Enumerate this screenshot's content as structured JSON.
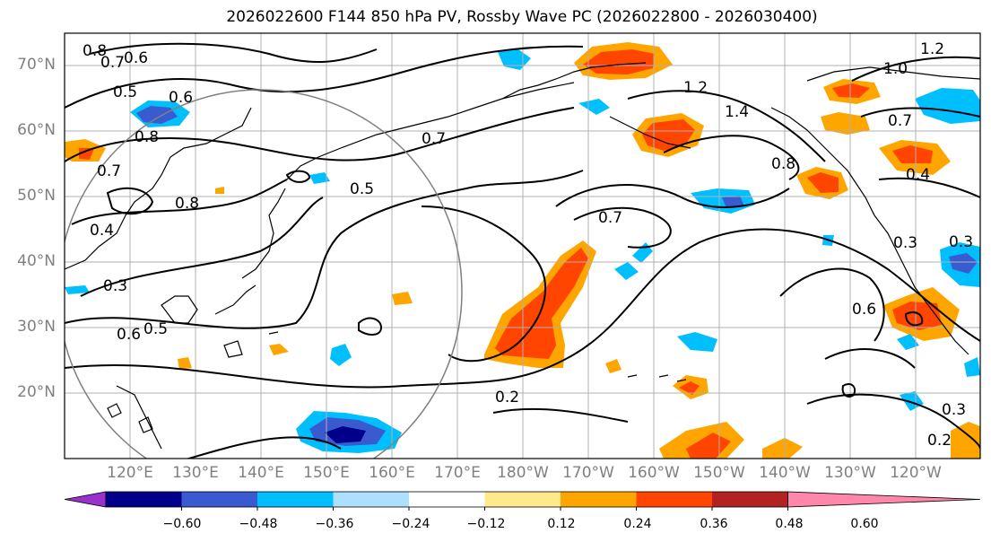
{
  "title": "2026022600 F144 850 hPa PV, Rossby Wave PC (2026022800 - 2026030400)",
  "map": {
    "lat_ticks": [
      "70°N",
      "60°N",
      "50°N",
      "40°N",
      "30°N",
      "20°N"
    ],
    "lon_ticks": [
      "120°E",
      "130°E",
      "140°E",
      "150°E",
      "160°E",
      "170°E",
      "180°W",
      "170°W",
      "160°W",
      "150°W",
      "140°W",
      "130°W",
      "120°W"
    ],
    "contour_labels": [
      "0.8",
      "0.7",
      "0.6",
      "0.5",
      "0.6",
      "0.8",
      "0.7",
      "0.4",
      "0.3",
      "0.6",
      "0.5",
      "0.5",
      "0.7",
      "0.8",
      "1.2",
      "1.4",
      "1.2",
      "1.0",
      "0.7",
      "0.4",
      "0.8",
      "0.7",
      "0.3",
      "0.3",
      "0.6",
      "0.2",
      "0.3",
      "0.2"
    ]
  },
  "colorbar": {
    "colors": [
      "#9932CC",
      "#00008B",
      "#3A5BD0",
      "#00BFFF",
      "#ADE0FF",
      "#FFFFFF",
      "#FFE98A",
      "#FFA500",
      "#FF4500",
      "#B22222",
      "#FF88AA"
    ],
    "tick_labels": [
      "−0.60",
      "−0.48",
      "−0.36",
      "−0.24",
      "−0.12",
      "0.12",
      "0.24",
      "0.36",
      "0.48",
      "0.60"
    ]
  }
}
